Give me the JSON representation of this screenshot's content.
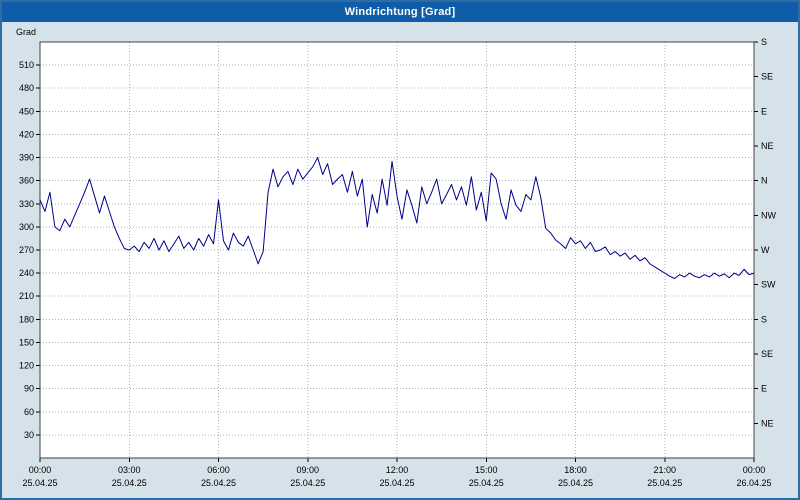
{
  "window": {
    "title": "Windrichtung [Grad]"
  },
  "colors": {
    "title_bar": "#0f5ca8",
    "title_text": "#ffffff",
    "background": "#d6e2ea",
    "plot_background": "#ffffff",
    "grid": "#a9b2ba",
    "plot_border": "#404040",
    "outer_border": "#2e6da4",
    "line": "#00008b",
    "axis_text": "#000000"
  },
  "chart_data": {
    "type": "line",
    "title": "Windrichtung [Grad]",
    "ylabel": "Grad",
    "xlabel": "",
    "ylim": [
      0,
      540
    ],
    "grid": true,
    "legend": "none",
    "y_ticks": [
      30,
      60,
      90,
      120,
      150,
      180,
      210,
      240,
      270,
      300,
      330,
      360,
      390,
      420,
      450,
      480,
      510
    ],
    "right_axis": [
      {
        "value": 540,
        "label": "S"
      },
      {
        "value": 495,
        "label": "SE"
      },
      {
        "value": 450,
        "label": "E"
      },
      {
        "value": 405,
        "label": "NE"
      },
      {
        "value": 360,
        "label": "N"
      },
      {
        "value": 315,
        "label": "NW"
      },
      {
        "value": 270,
        "label": "W"
      },
      {
        "value": 225,
        "label": "SW"
      },
      {
        "value": 180,
        "label": "S"
      },
      {
        "value": 135,
        "label": "SE"
      },
      {
        "value": 90,
        "label": "E"
      },
      {
        "value": 45,
        "label": "NE"
      }
    ],
    "x_range_hours": [
      0,
      24
    ],
    "sample_interval_minutes": 10,
    "x_ticks": [
      {
        "hour": 0,
        "time": "00:00",
        "date": "25.04.25"
      },
      {
        "hour": 3,
        "time": "03:00",
        "date": "25.04.25"
      },
      {
        "hour": 6,
        "time": "06:00",
        "date": "25.04.25"
      },
      {
        "hour": 9,
        "time": "09:00",
        "date": "25.04.25"
      },
      {
        "hour": 12,
        "time": "12:00",
        "date": "25.04.25"
      },
      {
        "hour": 15,
        "time": "15:00",
        "date": "25.04.25"
      },
      {
        "hour": 18,
        "time": "18:00",
        "date": "25.04.25"
      },
      {
        "hour": 21,
        "time": "21:00",
        "date": "25.04.25"
      },
      {
        "hour": 24,
        "time": "00:00",
        "date": "26.04.25"
      }
    ],
    "series": [
      {
        "name": "Windrichtung",
        "unit": "Grad",
        "color": "#00008b",
        "values": [
          335,
          320,
          345,
          300,
          295,
          310,
          300,
          315,
          330,
          345,
          362,
          340,
          318,
          340,
          320,
          300,
          285,
          272,
          270,
          275,
          268,
          280,
          272,
          285,
          270,
          282,
          268,
          278,
          288,
          272,
          280,
          270,
          285,
          275,
          290,
          278,
          335,
          282,
          270,
          292,
          280,
          275,
          288,
          270,
          252,
          268,
          345,
          375,
          352,
          365,
          372,
          355,
          375,
          362,
          370,
          378,
          390,
          368,
          382,
          355,
          362,
          368,
          345,
          372,
          340,
          362,
          300,
          342,
          318,
          362,
          328,
          385,
          340,
          310,
          348,
          328,
          305,
          352,
          330,
          345,
          362,
          330,
          342,
          355,
          335,
          352,
          328,
          365,
          322,
          345,
          308,
          370,
          362,
          330,
          310,
          348,
          328,
          320,
          342,
          335,
          365,
          338,
          298,
          292,
          283,
          278,
          272,
          286,
          278,
          282,
          272,
          280,
          268,
          270,
          274,
          264,
          268,
          262,
          266,
          258,
          263,
          256,
          260,
          252,
          248,
          244,
          240,
          236,
          233,
          238,
          235,
          240,
          236,
          234,
          238,
          235,
          240,
          236,
          239,
          234,
          240,
          237,
          245,
          238,
          240
        ]
      }
    ]
  }
}
